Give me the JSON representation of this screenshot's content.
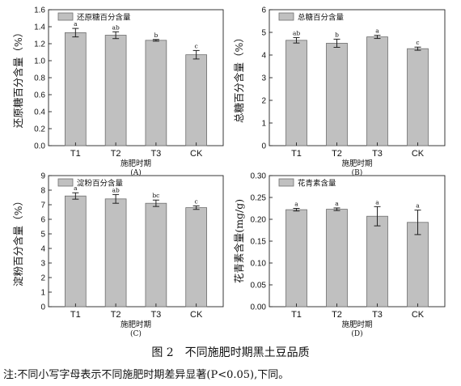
{
  "figure": {
    "number": "图 2",
    "title": "不同施肥时期黑土豆品质",
    "note": "注:不同小写字母表示不同施肥时期差异显著(P<0.05),下同。"
  },
  "chart_data": [
    {
      "type": "bar",
      "panel_label": "(A)",
      "legend": "还原糖百分含量",
      "xlabel": "施肥时期",
      "ylabel": "还原糖百分含量（%）",
      "categories": [
        "T1",
        "T2",
        "T3",
        "CK"
      ],
      "series": [
        {
          "name": "还原糖百分含量",
          "values": [
            1.33,
            1.3,
            1.24,
            1.07
          ]
        }
      ],
      "errors": [
        0.05,
        0.04,
        0.01,
        0.05
      ],
      "significance": [
        "a",
        "ab",
        "b",
        "c"
      ],
      "ylim": [
        0,
        1.6
      ],
      "yticks": [
        "0.0",
        "0.2",
        "0.4",
        "0.6",
        "0.8",
        "1.0",
        "1.2",
        "1.4",
        "1.6"
      ],
      "colors": {
        "bar": "#c0c0c0",
        "bar_edge": "#6e6e6e"
      }
    },
    {
      "type": "bar",
      "panel_label": "(B)",
      "legend": "总糖百分含量",
      "xlabel": "施肥时期",
      "ylabel": "总糖百分含量（%）",
      "categories": [
        "T1",
        "T2",
        "T3",
        "CK"
      ],
      "series": [
        {
          "name": "总糖百分含量",
          "values": [
            4.65,
            4.52,
            4.8,
            4.28
          ]
        }
      ],
      "errors": [
        0.12,
        0.18,
        0.07,
        0.07
      ],
      "significance": [
        "ab",
        "b",
        "a",
        "c"
      ],
      "ylim": [
        0,
        6
      ],
      "yticks": [
        "0",
        "1",
        "2",
        "3",
        "4",
        "5",
        "6"
      ],
      "colors": {
        "bar": "#c0c0c0",
        "bar_edge": "#6e6e6e"
      }
    },
    {
      "type": "bar",
      "panel_label": "(C)",
      "legend": "淀粉百分含量",
      "xlabel": "施肥时期",
      "ylabel": "淀粉百分含量（%）",
      "categories": [
        "T1",
        "T2",
        "T3",
        "CK"
      ],
      "series": [
        {
          "name": "淀粉百分含量",
          "values": [
            7.6,
            7.4,
            7.1,
            6.8
          ]
        }
      ],
      "errors": [
        0.22,
        0.3,
        0.22,
        0.12
      ],
      "significance": [
        "a",
        "ab",
        "bc",
        "c"
      ],
      "ylim": [
        0,
        9
      ],
      "yticks": [
        "0",
        "1",
        "2",
        "3",
        "4",
        "5",
        "6",
        "7",
        "8",
        "9"
      ],
      "colors": {
        "bar": "#c0c0c0",
        "bar_edge": "#6e6e6e"
      }
    },
    {
      "type": "bar",
      "panel_label": "(D)",
      "legend": "花青素含量",
      "xlabel": "施肥时期",
      "ylabel": "花青素含量(mg/g)",
      "categories": [
        "T1",
        "T2",
        "T3",
        "CK"
      ],
      "series": [
        {
          "name": "花青素含量",
          "values": [
            0.222,
            0.223,
            0.207,
            0.193
          ]
        }
      ],
      "errors": [
        0.003,
        0.003,
        0.022,
        0.028
      ],
      "significance": [
        "a",
        "a",
        "a",
        "a"
      ],
      "ylim": [
        0,
        0.3
      ],
      "yticks": [
        "0.00",
        "0.05",
        "0.10",
        "0.15",
        "0.20",
        "0.25",
        "0.30"
      ],
      "colors": {
        "bar": "#c0c0c0",
        "bar_edge": "#6e6e6e"
      }
    }
  ]
}
